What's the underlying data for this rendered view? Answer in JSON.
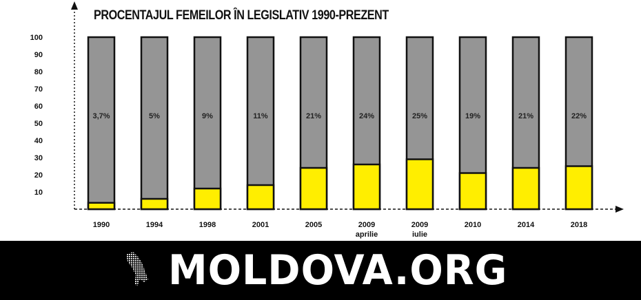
{
  "chart_data": {
    "type": "bar",
    "title": "PROCENTAJUL FEMEILOR ÎN LEGISLATIV 1990-PREZENT",
    "categories": [
      "1990",
      "1994",
      "1998",
      "2001",
      "2005",
      "2009",
      "2009",
      "2010",
      "2014",
      "2018"
    ],
    "sublabels": [
      "",
      "",
      "",
      "",
      "",
      "aprilie",
      "iulie",
      "",
      "",
      ""
    ],
    "values": [
      3.7,
      5,
      9,
      11,
      21,
      24,
      25,
      19,
      21,
      22
    ],
    "data_labels": [
      "3,7%",
      "5%",
      "9%",
      "11%",
      "21%",
      "24%",
      "25%",
      "19%",
      "21%",
      "22%"
    ],
    "fill_values": [
      3.7,
      6,
      12,
      14,
      24,
      26,
      29,
      21,
      24,
      25
    ],
    "yticks": [
      "10",
      "20",
      "30",
      "40",
      "50",
      "60",
      "70",
      "80",
      "90",
      "100"
    ],
    "ylim": [
      0,
      100
    ],
    "xlabel": "",
    "ylabel": "",
    "colors": {
      "women": "#ffee00",
      "total": "#959595"
    }
  },
  "footer": {
    "logo": "MOLDOVA.ORG"
  }
}
